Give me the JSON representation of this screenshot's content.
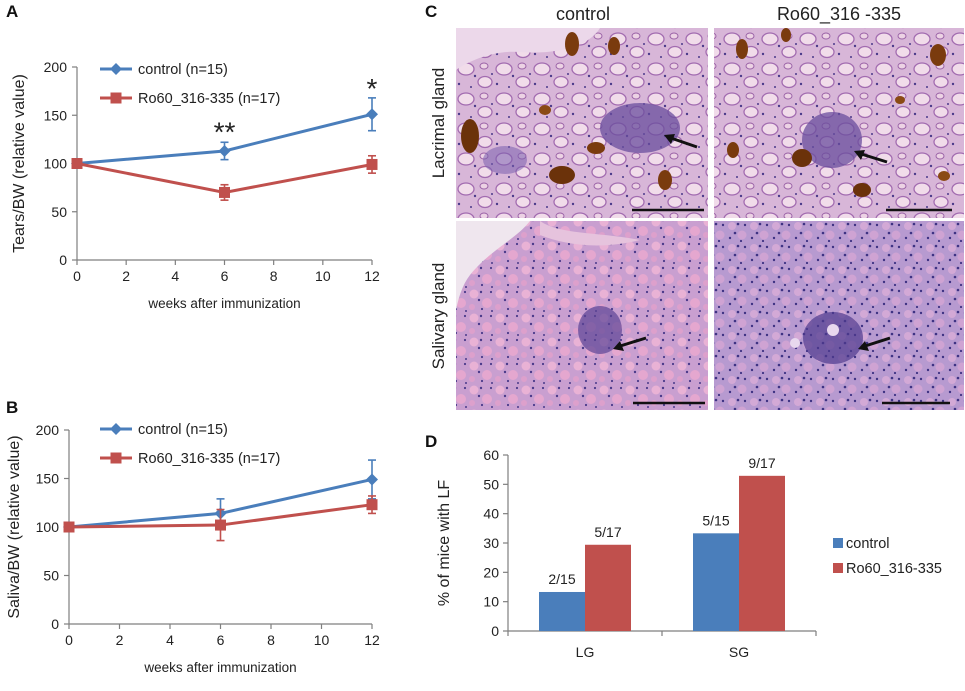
{
  "colors": {
    "control": "#4a7ebb",
    "treated": "#c0504d",
    "axis": "#7f7f7f",
    "he_pink": "#e5a7cf",
    "he_purple": "#6d55a6",
    "he_brown": "#7a3b0e"
  },
  "panel_letters": {
    "a": "A",
    "b": "B",
    "c": "C",
    "d": "D"
  },
  "chart_data": [
    {
      "id": "A",
      "type": "line",
      "title": "",
      "xlabel": "weeks after immunization",
      "ylabel": "Tears/BW (relative value)",
      "xlim": [
        0,
        12
      ],
      "ylim": [
        0,
        200
      ],
      "xticks": [
        0,
        2,
        4,
        6,
        8,
        10,
        12
      ],
      "yticks": [
        0,
        50,
        100,
        150,
        200
      ],
      "x": [
        0,
        6,
        12
      ],
      "series": [
        {
          "name": "control (n=15)",
          "marker": "diamond",
          "values": [
            100,
            113,
            151
          ],
          "errors": [
            0,
            9,
            17
          ]
        },
        {
          "name": "Ro60_316-335 (n=17)",
          "marker": "square",
          "values": [
            100,
            70,
            99
          ],
          "errors": [
            0,
            8,
            9
          ]
        }
      ],
      "annotations": [
        {
          "text": "**",
          "x": 6,
          "y": 133
        },
        {
          "text": "*",
          "x": 12,
          "y": 178
        }
      ]
    },
    {
      "id": "B",
      "type": "line",
      "title": "",
      "xlabel": "weeks after immunization",
      "ylabel": "Saliva/BW (relative value)",
      "xlim": [
        0,
        12
      ],
      "ylim": [
        0,
        200
      ],
      "xticks": [
        0,
        2,
        4,
        6,
        8,
        10,
        12
      ],
      "yticks": [
        0,
        50,
        100,
        150,
        200
      ],
      "x": [
        0,
        6,
        12
      ],
      "series": [
        {
          "name": "control (n=15)",
          "marker": "diamond",
          "values": [
            100,
            114,
            149
          ],
          "errors": [
            0,
            15,
            20
          ]
        },
        {
          "name": "Ro60_316-335 (n=17)",
          "marker": "square",
          "values": [
            100,
            102,
            123
          ],
          "errors": [
            0,
            16,
            9
          ]
        }
      ],
      "annotations": []
    },
    {
      "id": "D",
      "type": "bar",
      "title": "",
      "xlabel": "",
      "ylabel": "% of mice with LF",
      "ylim": [
        0,
        60
      ],
      "yticks": [
        0,
        10,
        20,
        30,
        40,
        50,
        60
      ],
      "categories": [
        "LG",
        "SG"
      ],
      "series": [
        {
          "name": "control",
          "values": [
            13.3,
            33.3
          ],
          "labels": [
            "2/15",
            "5/15"
          ]
        },
        {
          "name": "Ro60_316-335",
          "values": [
            29.4,
            52.9
          ],
          "labels": [
            "5/17",
            "9/17"
          ]
        }
      ]
    }
  ],
  "histology": {
    "columns": [
      "control",
      "Ro60_316 -335"
    ],
    "rows": [
      "Lacrimal gland",
      "Salivary gland"
    ]
  }
}
